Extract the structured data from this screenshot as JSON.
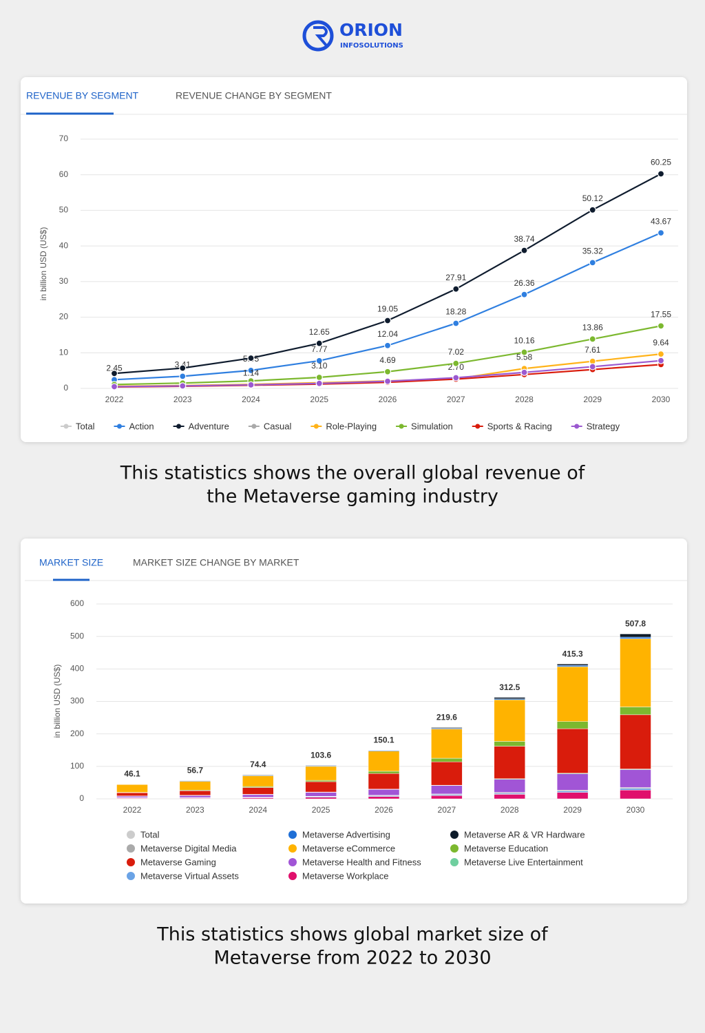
{
  "header": {
    "brand": "ORION",
    "sub": "INFOSOLUTIONS"
  },
  "captions": [
    [
      "This statistics shows the overall global revenue of",
      "the Metaverse gaming industry"
    ],
    [
      "This statistics shows global market size of",
      "Metaverse from 2022 to 2030"
    ]
  ],
  "chart_data": [
    {
      "type": "line",
      "tabs": [
        "REVENUE BY SEGMENT",
        "REVENUE CHANGE BY SEGMENT"
      ],
      "ylabel": "in billion USD (US$)",
      "categories": [
        "2022",
        "2023",
        "2024",
        "2025",
        "2026",
        "2027",
        "2028",
        "2029",
        "2030"
      ],
      "ylim": [
        0,
        70
      ],
      "yticks": [
        0,
        10,
        20,
        30,
        40,
        50,
        60,
        70
      ],
      "grid": true,
      "series": [
        {
          "name": "Total",
          "color": "#cccccc",
          "hidden": true,
          "values": [
            null,
            null,
            null,
            null,
            null,
            null,
            null,
            null,
            null
          ]
        },
        {
          "name": "Action",
          "color": "#2f7fe0",
          "values": [
            2.45,
            3.41,
            5.05,
            7.77,
            12.04,
            18.28,
            26.36,
            35.32,
            43.67
          ],
          "value_labels": [
            "2.45",
            "3.41",
            "5.05",
            "7.77",
            "12.04",
            "18.28",
            "26.36",
            "35.32",
            "43.67"
          ]
        },
        {
          "name": "Adventure",
          "color": "#0f1c2e",
          "values": [
            4.2,
            5.7,
            8.5,
            12.65,
            19.05,
            27.91,
            38.74,
            50.12,
            60.25
          ],
          "value_labels": [
            null,
            null,
            null,
            "12.65",
            "19.05",
            "27.91",
            "38.74",
            "50.12",
            "60.25"
          ]
        },
        {
          "name": "Casual",
          "color": "#aaaaaa",
          "values": [
            null,
            null,
            null,
            null,
            null,
            null,
            null,
            null,
            null
          ]
        },
        {
          "name": "Role-Playing",
          "color": "#ffb31a",
          "values": [
            0.6,
            0.8,
            1.14,
            1.6,
            2.1,
            2.7,
            5.58,
            7.61,
            9.64
          ],
          "value_labels": [
            null,
            null,
            "1.14",
            null,
            null,
            "2.70",
            "5.58",
            "7.61",
            "9.64"
          ]
        },
        {
          "name": "Simulation",
          "color": "#7cb82f",
          "values": [
            1.1,
            1.5,
            2.1,
            3.1,
            4.69,
            7.02,
            10.16,
            13.86,
            17.55
          ],
          "value_labels": [
            null,
            null,
            null,
            "3.10",
            "4.69",
            "7.02",
            "10.16",
            "13.86",
            "17.55"
          ]
        },
        {
          "name": "Sports & Racing",
          "color": "#d91c0c",
          "values": [
            0.4,
            0.6,
            0.9,
            1.2,
            1.7,
            2.6,
            3.9,
            5.3,
            6.7
          ]
        },
        {
          "name": "Strategy",
          "color": "#9b59d0",
          "values": [
            0.5,
            0.7,
            1.0,
            1.4,
            2.0,
            3.0,
            4.5,
            6.1,
            7.8
          ]
        }
      ]
    },
    {
      "type": "stacked_bar",
      "tabs": [
        "MARKET SIZE",
        "MARKET SIZE CHANGE BY MARKET"
      ],
      "ylabel": "in billion USD (US$)",
      "categories": [
        "2022",
        "2023",
        "2024",
        "2025",
        "2026",
        "2027",
        "2028",
        "2029",
        "2030"
      ],
      "ylim": [
        0,
        600
      ],
      "yticks": [
        0,
        100,
        200,
        300,
        400,
        500,
        600
      ],
      "grid": true,
      "series": [
        {
          "name": "Total",
          "color": "#cccccc",
          "hidden": true,
          "values": [
            46.1,
            56.7,
            74.4,
            103.6,
            150.1,
            219.6,
            312.5,
            415.3,
            507.8
          ]
        },
        {
          "name": "Metaverse Advertising",
          "color": "#1f6fd6",
          "values": [
            1,
            2,
            2,
            2,
            2,
            2,
            3,
            4,
            5
          ]
        },
        {
          "name": "Metaverse AR & VR Hardware",
          "color": "#0d1b2a",
          "values": [
            1.1,
            0.7,
            1.4,
            1.6,
            1.1,
            2.6,
            4.5,
            4.3,
            9.8
          ]
        },
        {
          "name": "Metaverse Digital Media",
          "color": "#aaaaaa",
          "values": [
            1,
            1,
            1,
            1,
            2,
            2,
            3,
            3,
            3
          ]
        },
        {
          "name": "Metaverse eCommerce",
          "color": "#ffb300",
          "values": [
            24,
            27,
            33,
            43,
            62,
            90,
            128,
            169,
            210
          ]
        },
        {
          "name": "Metaverse Education",
          "color": "#7cb82f",
          "values": [
            1,
            2,
            3,
            4,
            7,
            11,
            15,
            22,
            24
          ]
        },
        {
          "name": "Metaverse Gaming",
          "color": "#d91c0c",
          "values": [
            10,
            14,
            21,
            32,
            48,
            72,
            100,
            137,
            167
          ]
        },
        {
          "name": "Metaverse Health and Fitness",
          "color": "#a155d6",
          "values": [
            4,
            6,
            8,
            12,
            18,
            26,
            40,
            50,
            55
          ]
        },
        {
          "name": "Metaverse Live Entertainment",
          "color": "#6fcf9f",
          "values": [
            1,
            1,
            1,
            1,
            1,
            1,
            2,
            2,
            2
          ]
        },
        {
          "name": "Metaverse Virtual Assets",
          "color": "#6aa3e6",
          "values": [
            1,
            1,
            1,
            2,
            2,
            3,
            3,
            4,
            5
          ]
        },
        {
          "name": "Metaverse Workplace",
          "color": "#e0106c",
          "values": [
            2,
            2,
            3,
            5,
            7,
            10,
            14,
            20,
            27
          ]
        }
      ]
    }
  ]
}
